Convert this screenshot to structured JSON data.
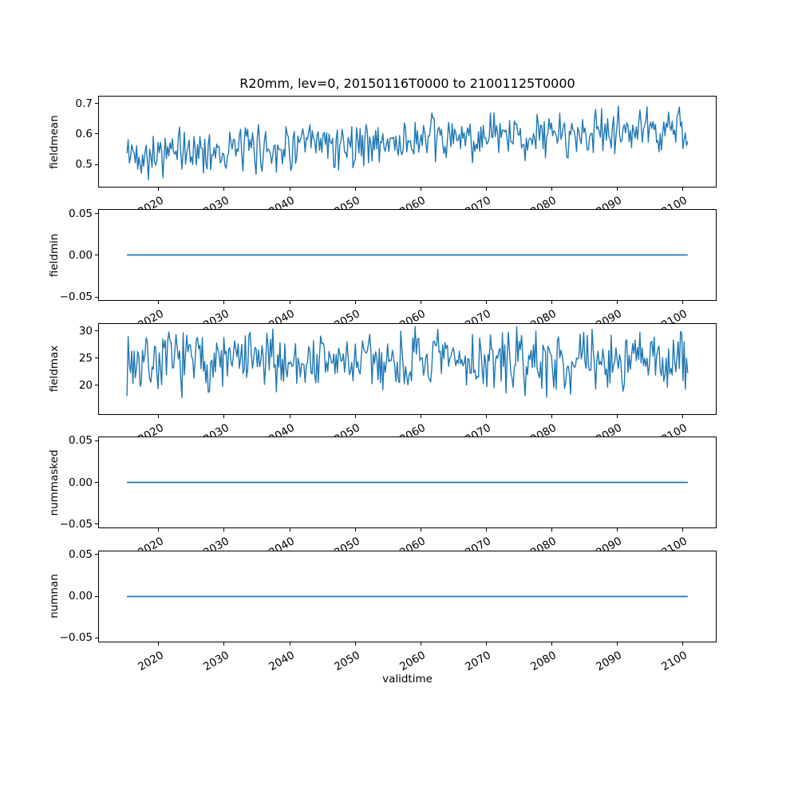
{
  "figure": {
    "title": "R20mm, lev=0, 20150116T0000 to 21001125T0000",
    "xlabel": "validtime",
    "background_color": "#ffffff",
    "line_color": "#1f77b4",
    "text_color": "#000000"
  },
  "x_axis": {
    "label": "validtime",
    "xlim": [
      2010.75,
      2105.2
    ],
    "ticks": [
      2020,
      2030,
      2040,
      2050,
      2060,
      2070,
      2080,
      2090,
      2100
    ],
    "tick_labels": [
      "2020",
      "2030",
      "2040",
      "2050",
      "2060",
      "2070",
      "2080",
      "2090",
      "2100"
    ],
    "tick_rotation_deg": 30,
    "data_start": 2015.04,
    "data_end": 2100.9
  },
  "chart_data": [
    {
      "type": "line",
      "ylabel": "fieldmean",
      "ylim": [
        0.425,
        0.725
      ],
      "yticks": [
        0.5,
        0.6,
        0.7
      ],
      "ytick_labels": [
        "0.5",
        "0.6",
        "0.7"
      ],
      "x_start": 2015.04,
      "x_end": 2100.9,
      "n_points": 470,
      "series": {
        "kind": "noisy_trend",
        "seed": 42,
        "trend_start": 0.532,
        "trend_end": 0.618,
        "noise_half_range": 0.095,
        "observed_min": 0.435,
        "observed_max": 0.71
      }
    },
    {
      "type": "line",
      "ylabel": "fieldmin",
      "ylim": [
        -0.055,
        0.055
      ],
      "yticks": [
        -0.05,
        0.0,
        0.05
      ],
      "ytick_labels": [
        "−0.05",
        "0.00",
        "0.05"
      ],
      "x_start": 2015.04,
      "x_end": 2100.9,
      "n_points": 2,
      "series": {
        "kind": "constant",
        "value": 0.0
      }
    },
    {
      "type": "line",
      "ylabel": "fieldmax",
      "ylim": [
        14.5,
        31.5
      ],
      "yticks": [
        20,
        25,
        30
      ],
      "ytick_labels": [
        "20",
        "25",
        "30"
      ],
      "x_start": 2015.04,
      "x_end": 2100.9,
      "n_points": 470,
      "series": {
        "kind": "noisy_trend",
        "seed": 7,
        "trend_start": 24.4,
        "trend_end": 24.4,
        "noise_half_range": 7.0,
        "observed_min": 16.3,
        "observed_max": 31.2
      }
    },
    {
      "type": "line",
      "ylabel": "nummasked",
      "ylim": [
        -0.055,
        0.055
      ],
      "yticks": [
        -0.05,
        0.0,
        0.05
      ],
      "ytick_labels": [
        "−0.05",
        "0.00",
        "0.05"
      ],
      "x_start": 2015.04,
      "x_end": 2100.9,
      "n_points": 2,
      "series": {
        "kind": "constant",
        "value": 0.0
      }
    },
    {
      "type": "line",
      "ylabel": "numnan",
      "ylim": [
        -0.055,
        0.055
      ],
      "yticks": [
        -0.05,
        0.0,
        0.05
      ],
      "ytick_labels": [
        "−0.05",
        "0.00",
        "0.05"
      ],
      "x_start": 2015.04,
      "x_end": 2100.9,
      "n_points": 2,
      "series": {
        "kind": "constant",
        "value": 0.0
      }
    }
  ]
}
